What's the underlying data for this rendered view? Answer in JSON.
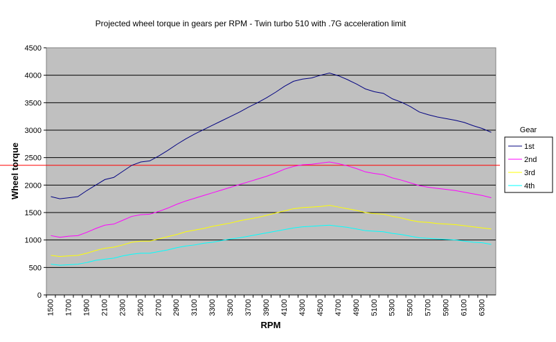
{
  "chart_data": {
    "type": "line",
    "title": "Projected wheel torque in gears per RPM - Twin  turbo 510 with .7G acceleration limit",
    "xlabel": "RPM",
    "ylabel": "Wheel torque",
    "ylim": [
      0,
      4500
    ],
    "yticks": [
      0,
      500,
      1000,
      1500,
      2000,
      2500,
      3000,
      3500,
      4000,
      4500
    ],
    "x": [
      1500,
      1600,
      1700,
      1800,
      1900,
      2000,
      2100,
      2200,
      2300,
      2400,
      2500,
      2600,
      2700,
      2800,
      2900,
      3000,
      3100,
      3200,
      3300,
      3400,
      3500,
      3600,
      3700,
      3800,
      3900,
      4000,
      4100,
      4200,
      4300,
      4400,
      4500,
      4600,
      4700,
      4800,
      4900,
      5000,
      5100,
      5200,
      5300,
      5400,
      5500,
      5600,
      5700,
      5800,
      5900,
      6000,
      6100,
      6200,
      6300,
      6400
    ],
    "xtick_labels": [
      "1500",
      "1700",
      "1900",
      "2100",
      "2300",
      "2500",
      "2700",
      "2900",
      "3100",
      "3300",
      "3500",
      "3700",
      "3900",
      "4100",
      "4300",
      "4500",
      "4700",
      "4900",
      "5100",
      "5300",
      "5500",
      "5700",
      "5900",
      "6100",
      "6300"
    ],
    "grid": "horizontal",
    "background": "#c0c0c0",
    "legend": {
      "title": "Gear",
      "placement": "right"
    },
    "series": [
      {
        "name": "1st",
        "color": "#000080",
        "values": [
          1790,
          1750,
          1770,
          1790,
          1900,
          2000,
          2100,
          2140,
          2250,
          2360,
          2420,
          2440,
          2530,
          2630,
          2740,
          2840,
          2930,
          3010,
          3090,
          3170,
          3250,
          3330,
          3420,
          3500,
          3590,
          3690,
          3800,
          3890,
          3930,
          3950,
          4000,
          4040,
          3990,
          3920,
          3840,
          3750,
          3700,
          3670,
          3570,
          3510,
          3430,
          3330,
          3280,
          3240,
          3210,
          3180,
          3140,
          3080,
          3030,
          2960
        ]
      },
      {
        "name": "2nd",
        "color": "#ff00ff",
        "values": [
          1080,
          1050,
          1070,
          1080,
          1140,
          1210,
          1270,
          1290,
          1360,
          1430,
          1460,
          1470,
          1520,
          1580,
          1650,
          1710,
          1760,
          1810,
          1860,
          1910,
          1960,
          2010,
          2060,
          2110,
          2160,
          2220,
          2290,
          2340,
          2370,
          2380,
          2400,
          2420,
          2390,
          2350,
          2300,
          2240,
          2210,
          2190,
          2130,
          2090,
          2040,
          1990,
          1960,
          1940,
          1920,
          1900,
          1870,
          1840,
          1810,
          1770
        ]
      },
      {
        "name": "3rd",
        "color": "#ffff00",
        "values": [
          720,
          700,
          710,
          720,
          760,
          810,
          850,
          870,
          910,
          960,
          980,
          980,
          1020,
          1060,
          1100,
          1150,
          1180,
          1210,
          1250,
          1280,
          1310,
          1350,
          1380,
          1410,
          1450,
          1490,
          1530,
          1570,
          1590,
          1600,
          1610,
          1630,
          1600,
          1570,
          1540,
          1500,
          1480,
          1470,
          1430,
          1400,
          1360,
          1330,
          1320,
          1300,
          1290,
          1280,
          1260,
          1240,
          1220,
          1200
        ]
      },
      {
        "name": "4th",
        "color": "#00ffff",
        "values": [
          560,
          540,
          550,
          560,
          590,
          630,
          650,
          670,
          710,
          740,
          760,
          760,
          790,
          820,
          860,
          890,
          910,
          940,
          960,
          990,
          1020,
          1040,
          1070,
          1100,
          1130,
          1160,
          1190,
          1220,
          1240,
          1250,
          1260,
          1270,
          1250,
          1230,
          1200,
          1170,
          1160,
          1150,
          1120,
          1100,
          1070,
          1040,
          1030,
          1020,
          1010,
          1000,
          980,
          960,
          950,
          920
        ]
      }
    ],
    "reference_line": {
      "value": 2360,
      "color": "#ff0000"
    }
  }
}
